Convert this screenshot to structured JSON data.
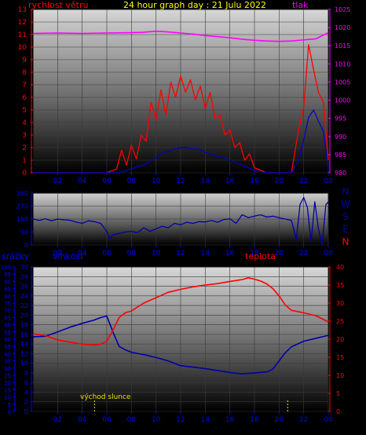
{
  "chart_data": [
    {
      "type": "line",
      "title": "24 hour graph day : 21 Julu 2022",
      "left_axis_label": "rychlost větru",
      "right_axis_label": "tlak",
      "left_ticks": [
        "0",
        "1",
        "2",
        "3",
        "4",
        "5",
        "6",
        "7",
        "8",
        "9",
        "10",
        "11",
        "12",
        "13"
      ],
      "right_ticks": [
        "980",
        "985",
        "990",
        "995",
        "1000",
        "1005",
        "1010",
        "1015",
        "1020",
        "1025"
      ],
      "x_ticks": [
        "02",
        "04",
        "06",
        "08",
        "10",
        "12",
        "14",
        "16",
        "18",
        "20",
        "22",
        "00"
      ],
      "ylim_left": [
        0,
        13
      ],
      "ylim_right": [
        980,
        1025
      ],
      "xlim_hours": [
        0,
        24
      ],
      "grid": true,
      "colors": {
        "wind_gust": "#ff0000",
        "wind_avg": "#0000cc",
        "pressure": "#ff00ff"
      },
      "series": [
        {
          "key": "pressure",
          "axis": "right",
          "x": [
            0,
            2,
            4,
            6,
            8,
            9,
            10,
            11,
            12,
            13,
            14,
            15,
            16,
            17,
            18,
            19,
            20,
            21,
            22,
            23,
            24
          ],
          "y": [
            1018.4,
            1018.5,
            1018.4,
            1018.5,
            1018.6,
            1018.7,
            1019.0,
            1018.8,
            1018.5,
            1018.2,
            1017.8,
            1017.5,
            1017.2,
            1016.8,
            1016.5,
            1016.3,
            1016.2,
            1016.3,
            1016.6,
            1016.9,
            1018.6
          ]
        },
        {
          "key": "wind_gust",
          "axis": "left",
          "x": [
            0,
            6,
            6.8,
            7.2,
            7.6,
            8.0,
            8.4,
            8.8,
            9.2,
            9.6,
            10.0,
            10.4,
            10.8,
            11.2,
            11.6,
            12.0,
            12.4,
            12.8,
            13.2,
            13.6,
            14.0,
            14.4,
            14.8,
            15.2,
            15.6,
            16.0,
            16.4,
            16.8,
            17.2,
            17.6,
            18.0,
            19,
            20,
            21,
            21.6,
            22.0,
            22.4,
            22.8,
            23.2,
            23.6,
            24
          ],
          "y": [
            0,
            0,
            0.3,
            1.8,
            0.6,
            2.2,
            1.1,
            3.0,
            2.5,
            5.6,
            4.2,
            6.6,
            4.6,
            7.2,
            6.0,
            7.7,
            6.4,
            7.4,
            5.8,
            6.9,
            5.1,
            6.4,
            4.3,
            4.6,
            3.0,
            3.4,
            2.0,
            2.4,
            1.0,
            1.5,
            0.4,
            0,
            0,
            0,
            3.5,
            5.2,
            10.2,
            8.2,
            6.4,
            5.6,
            1.0
          ]
        },
        {
          "key": "wind_avg",
          "axis": "left",
          "x": [
            0,
            7,
            8,
            8.5,
            9.0,
            9.5,
            10.0,
            10.5,
            11,
            11.5,
            12,
            12.5,
            13,
            13.5,
            14,
            14.5,
            15,
            15.5,
            16,
            16.5,
            17,
            17.5,
            18,
            19,
            20,
            21,
            21.6,
            22.0,
            22.4,
            22.8,
            23.2,
            23.6,
            24
          ],
          "y": [
            0,
            0,
            0.3,
            0.5,
            0.6,
            0.9,
            1.2,
            1.6,
            1.7,
            1.9,
            2.0,
            2.0,
            1.9,
            1.9,
            1.6,
            1.5,
            1.3,
            1.2,
            1.0,
            0.8,
            0.6,
            0.4,
            0.2,
            0,
            0,
            0,
            1.0,
            2.6,
            4.4,
            5.0,
            4.1,
            3.3,
            0.3
          ]
        }
      ]
    },
    {
      "type": "line",
      "title": "",
      "right_labels": [
        "N",
        "W",
        "S",
        "E",
        "N"
      ],
      "left_ticks": [
        "0",
        "90",
        "180",
        "270",
        "360"
      ],
      "x_ticks": [
        "02",
        "04",
        "06",
        "08",
        "10",
        "12",
        "14",
        "16",
        "18",
        "20",
        "22",
        "00"
      ],
      "ylim": [
        0,
        360
      ],
      "xlim_hours": [
        0,
        24
      ],
      "grid": true,
      "colors": {
        "direction": "#0000aa"
      },
      "series": [
        {
          "key": "direction",
          "x": [
            0,
            0.5,
            1,
            1.5,
            2,
            2.5,
            3,
            3.5,
            4,
            4.5,
            5,
            5.5,
            6,
            6.2,
            6.5,
            7,
            7.5,
            8,
            8.5,
            9,
            9.5,
            10,
            10.5,
            11,
            11.5,
            12,
            12.5,
            13,
            13.5,
            14,
            14.5,
            15,
            15.5,
            16,
            16.5,
            17,
            17.5,
            18,
            18.5,
            19,
            19.5,
            20,
            20.5,
            21,
            21.4,
            21.7,
            22,
            22.3,
            22.6,
            22.9,
            23.2,
            23.5,
            23.8,
            24
          ],
          "y": [
            180,
            170,
            182,
            168,
            180,
            175,
            172,
            160,
            150,
            168,
            162,
            150,
            95,
            45,
            72,
            80,
            90,
            95,
            85,
            120,
            95,
            112,
            130,
            120,
            150,
            140,
            158,
            150,
            162,
            160,
            170,
            158,
            176,
            182,
            150,
            210,
            190,
            200,
            210,
            194,
            200,
            190,
            180,
            170,
            40,
            280,
            330,
            260,
            20,
            300,
            110,
            0,
            280,
            300
          ]
        }
      ]
    },
    {
      "type": "line",
      "left_label_1": "srážky",
      "left_label_2": "vlhkost",
      "right_label": "teplota",
      "ticks_precip": [
        "0",
        "5",
        "10",
        "15",
        "20",
        "25",
        "30",
        "35",
        "40",
        "45",
        "50",
        "55",
        "60",
        "65",
        "70",
        "75",
        "80",
        "85",
        "90",
        "95",
        "100"
      ],
      "ticks_humidity": [
        "0",
        "2",
        "4",
        "6",
        "8",
        "10",
        "12",
        "14",
        "16",
        "18",
        "20",
        "22",
        "24",
        "26",
        "28",
        "30"
      ],
      "ticks_temperature": [
        "0",
        "5",
        "10",
        "15",
        "20",
        "25",
        "30",
        "35",
        "40"
      ],
      "x_ticks": [
        "02",
        "04",
        "06",
        "08",
        "10",
        "12",
        "14",
        "16",
        "18",
        "20",
        "22",
        "00"
      ],
      "ylim_humidity": [
        0,
        30
      ],
      "ylim_temperature": [
        0,
        40
      ],
      "xlim_hours": [
        0,
        24
      ],
      "grid": true,
      "annotation": "východ slunce",
      "colors": {
        "humidity": "#0000aa",
        "temperature": "#ff0000",
        "sun_marker": "#e6e600"
      },
      "sun_markers_hours": [
        5.0,
        20.7
      ],
      "series": [
        {
          "key": "humidity",
          "axis": "humidity",
          "x": [
            0,
            1,
            2,
            3,
            4,
            5,
            5.5,
            6,
            6.5,
            7,
            7.5,
            8,
            9,
            10,
            11,
            12,
            13,
            14,
            15,
            16,
            17,
            18,
            19,
            19.5,
            20,
            20.5,
            21,
            22,
            23,
            24
          ],
          "y": [
            15.5,
            15.6,
            16.5,
            17.5,
            18.3,
            19,
            19.5,
            19.8,
            16.5,
            13.5,
            12.8,
            12.3,
            11.8,
            11.2,
            10.5,
            9.5,
            9.2,
            8.9,
            8.5,
            8.1,
            7.8,
            8.0,
            8.2,
            8.8,
            10.5,
            12.2,
            13.4,
            14.6,
            15.2,
            15.8
          ]
        },
        {
          "key": "temperature",
          "axis": "temperature",
          "x": [
            0,
            1,
            2,
            3,
            4,
            5,
            5.5,
            6,
            6.5,
            7,
            7.5,
            8,
            9,
            10,
            11,
            12,
            13,
            14,
            15,
            16,
            17,
            17.5,
            18,
            18.5,
            19,
            19.5,
            20,
            20.5,
            21,
            22,
            23,
            24
          ],
          "y": [
            21.5,
            21.0,
            19.8,
            19.2,
            18.6,
            18.4,
            18.6,
            19.5,
            22.5,
            26.0,
            27.3,
            27.8,
            30.0,
            31.5,
            33.0,
            33.8,
            34.5,
            35.0,
            35.4,
            36.0,
            36.5,
            37.0,
            36.6,
            36.1,
            35.3,
            34.0,
            32.0,
            29.5,
            28.0,
            27.3,
            26.5,
            24.8
          ]
        }
      ]
    }
  ]
}
